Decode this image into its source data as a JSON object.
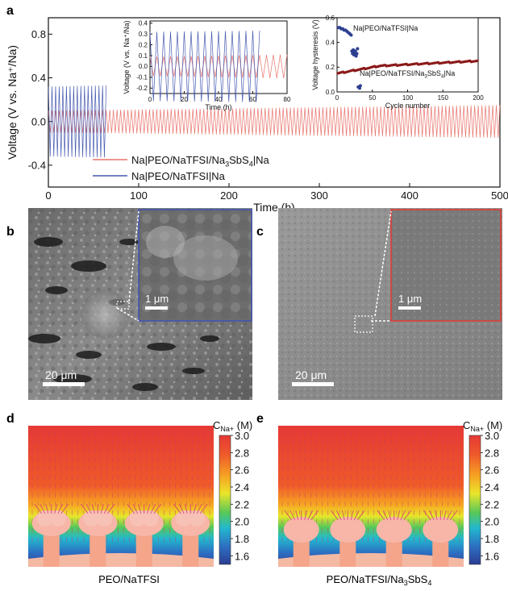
{
  "panels": {
    "a": "a",
    "b": "b",
    "c": "c",
    "d": "d",
    "e": "e"
  },
  "chart_data": [
    {
      "type": "line",
      "id": "main",
      "xlabel": "Time (h)",
      "ylabel": "Voltage (V vs. Na⁺/Na)",
      "xlim": [
        0,
        500
      ],
      "ylim": [
        -0.6,
        0.95
      ],
      "xticks": [
        0,
        100,
        200,
        300,
        400,
        500
      ],
      "yticks": [
        -0.4,
        0.0,
        0.4,
        0.8
      ],
      "yticklabels": [
        "-0.4",
        "0.0",
        "0.4",
        "0.8"
      ],
      "legend": "lower-left",
      "series": [
        {
          "name_parts": [
            "Na|PEO/NaTFSI/Na",
            "3",
            "SbS",
            "4",
            "|Na"
          ],
          "color": "#e8736b",
          "x_range": [
            0,
            500
          ],
          "amplitude_start": 0.1,
          "amplitude_end": 0.15,
          "period_h": 4
        },
        {
          "name": "Na|PEO/NaTFSI|Na",
          "color": "#4659b0",
          "x_range": [
            0,
            65
          ],
          "amplitude_start": 0.32,
          "amplitude_end": 0.33,
          "period_h": 4
        }
      ]
    },
    {
      "type": "line",
      "id": "inset-voltage",
      "xlabel": "Time (h)",
      "ylabel": "Voltage (V vs. Na⁺/Na)",
      "xlim": [
        0,
        80
      ],
      "ylim": [
        -0.25,
        0.42
      ],
      "xticks": [
        0,
        20,
        40,
        60,
        80
      ],
      "yticks": [
        -0.2,
        -0.1,
        0.0,
        0.1,
        0.2,
        0.3,
        0.4
      ],
      "yticklabels": [
        "-0.2",
        "-0.1",
        "0.0",
        "0.1",
        "0.2",
        "0.3",
        "0.4"
      ],
      "series": [
        {
          "name": "",
          "color": "#e8736b",
          "x_range": [
            0,
            80
          ],
          "amplitude_start": 0.09,
          "amplitude_end": 0.11
        },
        {
          "name": "",
          "color": "#4659b0",
          "x_range": [
            0,
            65
          ],
          "amplitude_start": 0.32,
          "amplitude_end": 0.33
        }
      ]
    },
    {
      "type": "scatter",
      "id": "inset-hysteresis",
      "xlabel": "Cycle number",
      "ylabel": "Voltage hysteresis (V)",
      "xlim": [
        0,
        200
      ],
      "ylim": [
        0,
        0.6
      ],
      "xticks": [
        0,
        50,
        100,
        150,
        200
      ],
      "yticks": [
        0.0,
        0.2,
        0.4,
        0.6
      ],
      "yticklabels": [
        "0.0",
        "0.2",
        "0.4",
        "0.6"
      ],
      "series": [
        {
          "name": "Na|PEO/NaTFSI|Na",
          "color": "#2c3f8f",
          "points": [
            [
              2,
              0.52
            ],
            [
              4,
              0.52
            ],
            [
              6,
              0.51
            ],
            [
              8,
              0.51
            ],
            [
              10,
              0.5
            ],
            [
              12,
              0.5
            ],
            [
              14,
              0.49
            ],
            [
              16,
              0.48
            ],
            [
              18,
              0.47
            ],
            [
              20,
              0.46
            ],
            [
              21,
              0.33
            ],
            [
              22,
              0.31
            ],
            [
              23,
              0.34
            ],
            [
              24,
              0.3
            ],
            [
              25,
              0.32
            ],
            [
              26,
              0.33
            ],
            [
              27,
              0.29
            ],
            [
              28,
              0.31
            ],
            [
              29,
              0.35
            ],
            [
              30,
              0.04
            ],
            [
              32,
              0.03
            ],
            [
              33,
              0.05
            ]
          ]
        },
        {
          "name_parts": [
            "Na|PEO/NaTFSI/Na",
            "3",
            "SbS",
            "4",
            "|Na"
          ],
          "color": "#8b1a1a",
          "x_start": 1,
          "x_end": 200,
          "y_start": 0.15,
          "y_mid": 0.21,
          "y_end": 0.25
        }
      ]
    },
    {
      "type": "heatmap",
      "id": "colorbar",
      "title_parts": [
        "C",
        "Na+",
        " (M)"
      ],
      "ticks": [
        "3.0",
        "2.8",
        "2.6",
        "2.4",
        "2.2",
        "2.0",
        "1.8",
        "1.6"
      ],
      "range": [
        1.5,
        3.0
      ]
    }
  ],
  "sem": {
    "b": {
      "scale": "20 μm",
      "inset_scale": "1 μm",
      "frame_color": "#3f51b5"
    },
    "c": {
      "scale": "20 μm",
      "inset_scale": "1 μm",
      "frame_color": "#e53935"
    }
  },
  "sim": {
    "d_caption": "PEO/NaTFSI",
    "e_caption_parts": [
      "PEO/NaTFSI/Na",
      "3",
      "SbS",
      "4"
    ]
  },
  "colors": {
    "red": "#e8736b",
    "blue": "#4659b0",
    "dark_red": "#8b1a1a",
    "dark_blue": "#2c3f8f"
  }
}
